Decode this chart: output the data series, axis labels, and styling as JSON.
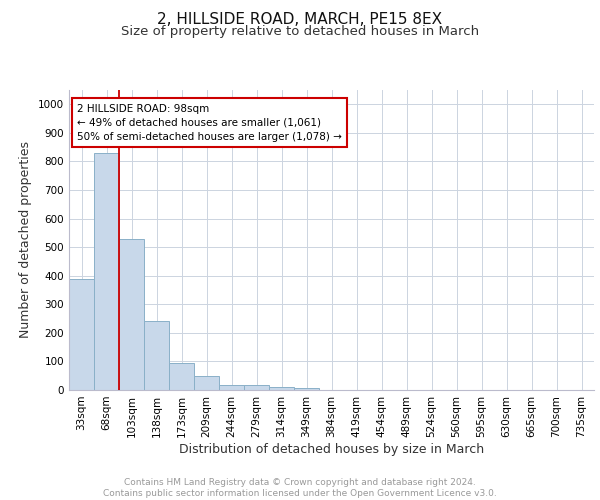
{
  "title1": "2, HILLSIDE ROAD, MARCH, PE15 8EX",
  "title2": "Size of property relative to detached houses in March",
  "xlabel": "Distribution of detached houses by size in March",
  "ylabel": "Number of detached properties",
  "categories": [
    "33sqm",
    "68sqm",
    "103sqm",
    "138sqm",
    "173sqm",
    "209sqm",
    "244sqm",
    "279sqm",
    "314sqm",
    "349sqm",
    "384sqm",
    "419sqm",
    "454sqm",
    "489sqm",
    "524sqm",
    "560sqm",
    "595sqm",
    "630sqm",
    "665sqm",
    "700sqm",
    "735sqm"
  ],
  "values": [
    390,
    828,
    530,
    240,
    95,
    50,
    18,
    18,
    12,
    8,
    0,
    0,
    0,
    0,
    0,
    0,
    0,
    0,
    0,
    0,
    0
  ],
  "bar_color": "#c8d8ea",
  "bar_edge_color": "#8ab0c8",
  "property_line_color": "#cc0000",
  "annotation_text": "2 HILLSIDE ROAD: 98sqm\n← 49% of detached houses are smaller (1,061)\n50% of semi-detached houses are larger (1,078) →",
  "annotation_box_color": "#ffffff",
  "annotation_box_edge_color": "#cc0000",
  "ylim": [
    0,
    1050
  ],
  "yticks": [
    0,
    100,
    200,
    300,
    400,
    500,
    600,
    700,
    800,
    900,
    1000
  ],
  "background_color": "#ffffff",
  "grid_color": "#ccd4e0",
  "footer_text": "Contains HM Land Registry data © Crown copyright and database right 2024.\nContains public sector information licensed under the Open Government Licence v3.0.",
  "title1_fontsize": 11,
  "title2_fontsize": 9.5,
  "xlabel_fontsize": 9,
  "ylabel_fontsize": 9,
  "tick_fontsize": 7.5,
  "footer_fontsize": 6.5
}
